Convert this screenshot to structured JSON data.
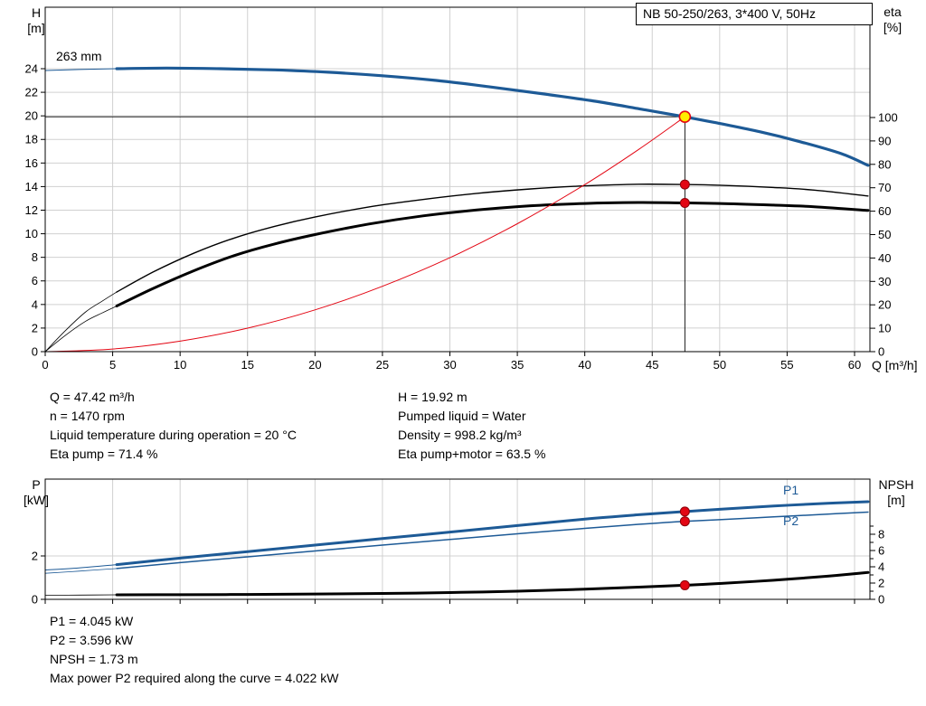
{
  "title_box": {
    "label": "NB 50-250/263, 3*400 V, 50Hz"
  },
  "info_top_left": [
    "Q = 47.42 m³/h",
    "n = 1470 rpm",
    "Liquid temperature during operation = 20 °C",
    "Eta pump = 71.4 %"
  ],
  "info_top_right": [
    "H = 19.92 m",
    "Pumped liquid = Water",
    "Density = 998.2 kg/m³",
    "Eta pump+motor = 63.5 %"
  ],
  "info_bottom": [
    "P1 = 4.045 kW",
    "P2 = 3.596 kW",
    "NPSH = 1.73 m",
    "Max power P2 required along the curve = 4.022 kW"
  ],
  "chart_data": [
    {
      "id": "head-efficiency-chart",
      "type": "line",
      "title": "NB 50-250/263, 3*400 V, 50Hz",
      "impeller_label": "263 mm",
      "x_axis": {
        "label": "Q [m³/h]",
        "min": 0,
        "max": 61.1,
        "ticks": [
          0,
          5,
          10,
          15,
          20,
          25,
          30,
          35,
          40,
          45,
          50,
          55,
          60
        ],
        "show_tick_labels": true
      },
      "y_left": {
        "label_lines": [
          "H",
          "[m]"
        ],
        "min": 0,
        "max": 24,
        "ticks": [
          0,
          2,
          4,
          6,
          8,
          10,
          12,
          14,
          16,
          18,
          20,
          22,
          24
        ]
      },
      "y_right": {
        "label_lines": [
          "eta",
          "[%]"
        ],
        "min": 0,
        "max": 100,
        "ticks": [
          0,
          10,
          20,
          30,
          40,
          50,
          60,
          70,
          80,
          90,
          100
        ]
      },
      "legend_position": "none",
      "grid": true,
      "duty_point": {
        "q": 47.42,
        "h": 19.92,
        "eta_pump": 71.4,
        "eta_pump_motor": 63.5
      },
      "crosshair": {
        "q": 47.42,
        "h": 19.92
      },
      "series": [
        {
          "name": "head-curve-low-flow",
          "axis": "left",
          "color": "#1d5a96",
          "width": 1,
          "points": [
            [
              0,
              23.85
            ],
            [
              2.5,
              23.93
            ],
            [
              5.3,
              24.0
            ]
          ]
        },
        {
          "name": "head-curve-263mm",
          "axis": "left",
          "color": "#1d5a96",
          "width": 3.2,
          "points": [
            [
              5.3,
              24.0
            ],
            [
              9,
              24.05
            ],
            [
              13,
              24.0
            ],
            [
              17,
              23.9
            ],
            [
              21,
              23.7
            ],
            [
              25,
              23.4
            ],
            [
              29,
              23.0
            ],
            [
              33,
              22.45
            ],
            [
              37,
              21.85
            ],
            [
              41,
              21.2
            ],
            [
              44.5,
              20.5
            ],
            [
              47.42,
              19.92
            ],
            [
              50,
              19.35
            ],
            [
              53,
              18.65
            ],
            [
              56,
              17.8
            ],
            [
              59,
              16.8
            ],
            [
              61,
              15.8
            ]
          ]
        },
        {
          "name": "eta-pump-low-flow",
          "axis": "right",
          "color": "#000000",
          "width": 0.8,
          "points": [
            [
              0,
              0
            ],
            [
              1.5,
              9
            ],
            [
              3,
              17
            ],
            [
              4.2,
              21.5
            ],
            [
              5.3,
              25.5
            ]
          ]
        },
        {
          "name": "eta-pump",
          "axis": "right",
          "color": "#000000",
          "width": 1.4,
          "points": [
            [
              5.3,
              25.5
            ],
            [
              8,
              34
            ],
            [
              11,
              42
            ],
            [
              14,
              48.5
            ],
            [
              17,
              53.5
            ],
            [
              20,
              57.5
            ],
            [
              24,
              61.8
            ],
            [
              28,
              65
            ],
            [
              32,
              67.6
            ],
            [
              36,
              69.5
            ],
            [
              40,
              70.8
            ],
            [
              44,
              71.5
            ],
            [
              47.42,
              71.4
            ],
            [
              50,
              71.1
            ],
            [
              54,
              70.1
            ],
            [
              57,
              69.0
            ],
            [
              61,
              66.5
            ]
          ]
        },
        {
          "name": "eta-pump-motor-low-flow",
          "axis": "right",
          "color": "#000000",
          "width": 0.8,
          "points": [
            [
              0,
              0
            ],
            [
              1.5,
              7
            ],
            [
              3,
              13
            ],
            [
              4.2,
              16.5
            ],
            [
              5.3,
              19.5
            ]
          ]
        },
        {
          "name": "eta-pump-motor",
          "axis": "right",
          "color": "#000000",
          "width": 3,
          "points": [
            [
              5.3,
              19.5
            ],
            [
              8,
              27
            ],
            [
              11,
              34.5
            ],
            [
              14,
              41
            ],
            [
              17,
              46
            ],
            [
              20,
              50
            ],
            [
              24,
              54.5
            ],
            [
              28,
              58
            ],
            [
              32,
              60.5
            ],
            [
              36,
              62.3
            ],
            [
              40,
              63.3
            ],
            [
              44,
              63.7
            ],
            [
              47.42,
              63.5
            ],
            [
              50,
              63.3
            ],
            [
              54,
              62.6
            ],
            [
              57,
              61.9
            ],
            [
              61,
              60.3
            ]
          ]
        },
        {
          "name": "system-curve",
          "axis": "left",
          "color": "#e30613",
          "width": 1,
          "points": [
            [
              0,
              0
            ],
            [
              5,
              0.22
            ],
            [
              10,
              0.89
            ],
            [
              15,
              1.99
            ],
            [
              20,
              3.54
            ],
            [
              25,
              5.54
            ],
            [
              30,
              7.97
            ],
            [
              35,
              10.85
            ],
            [
              40,
              14.17
            ],
            [
              44,
              17.15
            ],
            [
              47.42,
              19.92
            ]
          ]
        }
      ],
      "markers": [
        {
          "name": "duty-point",
          "q": 47.42,
          "v": 19.92,
          "axis": "left",
          "r": 6,
          "fill": "#ffed00",
          "stroke": "#e30613",
          "stroke_width": 1.6,
          "interactable": true
        },
        {
          "name": "eta-pump-point",
          "q": 47.42,
          "v": 71.4,
          "axis": "right",
          "r": 5,
          "fill": "#e30613",
          "stroke": "#8c0009",
          "stroke_width": 1,
          "interactable": false
        },
        {
          "name": "eta-pump-motor-point",
          "q": 47.42,
          "v": 63.5,
          "axis": "right",
          "r": 5,
          "fill": "#e30613",
          "stroke": "#8c0009",
          "stroke_width": 1,
          "interactable": false
        }
      ]
    },
    {
      "id": "power-npsh-chart",
      "type": "line",
      "title": "",
      "x_axis": {
        "label": "",
        "min": 0,
        "max": 61.1,
        "ticks": [
          0,
          5,
          10,
          15,
          20,
          25,
          30,
          35,
          40,
          45,
          50,
          55,
          60
        ],
        "show_tick_labels": false
      },
      "y_left": {
        "label_lines": [
          "P",
          "[kW]"
        ],
        "min": 0,
        "ticks": [
          0,
          2
        ]
      },
      "y_right": {
        "label_lines": [
          "NPSH",
          "[m]"
        ],
        "min": 0,
        "ticks": [
          0,
          2,
          4,
          6,
          8
        ],
        "minor_ticks": [
          1,
          3,
          5,
          7,
          9
        ]
      },
      "series_labels": {
        "p1": "P1",
        "p2": "P2"
      },
      "grid": true,
      "duty_values": {
        "p1_kw": 4.045,
        "p2_kw": 3.596,
        "npsh_m": 1.73
      },
      "series": [
        {
          "name": "p1-low-flow",
          "axis": "left",
          "color": "#1d5a96",
          "width": 1,
          "points": [
            [
              0,
              1.35
            ],
            [
              2.5,
              1.45
            ],
            [
              5.3,
              1.6
            ]
          ]
        },
        {
          "name": "p1",
          "axis": "left",
          "color": "#1d5a96",
          "width": 3,
          "points": [
            [
              5.3,
              1.6
            ],
            [
              10,
              1.9
            ],
            [
              15,
              2.2
            ],
            [
              20,
              2.5
            ],
            [
              25,
              2.8
            ],
            [
              30,
              3.1
            ],
            [
              35,
              3.4
            ],
            [
              40,
              3.7
            ],
            [
              44,
              3.9
            ],
            [
              47.42,
              4.045
            ],
            [
              50,
              4.15
            ],
            [
              54,
              4.3
            ],
            [
              58,
              4.43
            ],
            [
              61,
              4.5
            ]
          ]
        },
        {
          "name": "p2-low-flow",
          "axis": "left",
          "color": "#1d5a96",
          "width": 0.8,
          "points": [
            [
              0,
              1.2
            ],
            [
              2.5,
              1.3
            ],
            [
              5.3,
              1.42
            ]
          ]
        },
        {
          "name": "p2",
          "axis": "left",
          "color": "#1d5a96",
          "width": 1.5,
          "points": [
            [
              5.3,
              1.42
            ],
            [
              10,
              1.69
            ],
            [
              15,
              1.96
            ],
            [
              20,
              2.23
            ],
            [
              25,
              2.5
            ],
            [
              30,
              2.76
            ],
            [
              35,
              3.02
            ],
            [
              40,
              3.27
            ],
            [
              44,
              3.46
            ],
            [
              47.42,
              3.596
            ],
            [
              50,
              3.67
            ],
            [
              54,
              3.8
            ],
            [
              58,
              3.93
            ],
            [
              61,
              4.02
            ]
          ]
        },
        {
          "name": "npsh-low-flow",
          "axis": "right",
          "color": "#000000",
          "width": 0.8,
          "points": [
            [
              0,
              0.5
            ],
            [
              2.5,
              0.52
            ],
            [
              5.3,
              0.55
            ]
          ]
        },
        {
          "name": "npsh",
          "axis": "right",
          "color": "#000000",
          "width": 3,
          "points": [
            [
              5.3,
              0.55
            ],
            [
              10,
              0.57
            ],
            [
              15,
              0.6
            ],
            [
              20,
              0.65
            ],
            [
              25,
              0.72
            ],
            [
              30,
              0.83
            ],
            [
              35,
              1.0
            ],
            [
              40,
              1.25
            ],
            [
              44,
              1.5
            ],
            [
              47.42,
              1.73
            ],
            [
              50,
              1.95
            ],
            [
              54,
              2.35
            ],
            [
              58,
              2.85
            ],
            [
              61,
              3.3
            ]
          ]
        }
      ],
      "markers": [
        {
          "name": "p1-point",
          "q": 47.42,
          "v": 4.045,
          "axis": "left",
          "r": 5,
          "fill": "#e30613",
          "stroke": "#8c0009",
          "stroke_width": 1,
          "interactable": false
        },
        {
          "name": "p2-point",
          "q": 47.42,
          "v": 3.596,
          "axis": "left",
          "r": 5,
          "fill": "#e30613",
          "stroke": "#8c0009",
          "stroke_width": 1,
          "interactable": false
        },
        {
          "name": "npsh-point",
          "q": 47.42,
          "v": 1.73,
          "axis": "right",
          "r": 5,
          "fill": "#e30613",
          "stroke": "#8c0009",
          "stroke_width": 1,
          "interactable": false
        }
      ]
    }
  ]
}
